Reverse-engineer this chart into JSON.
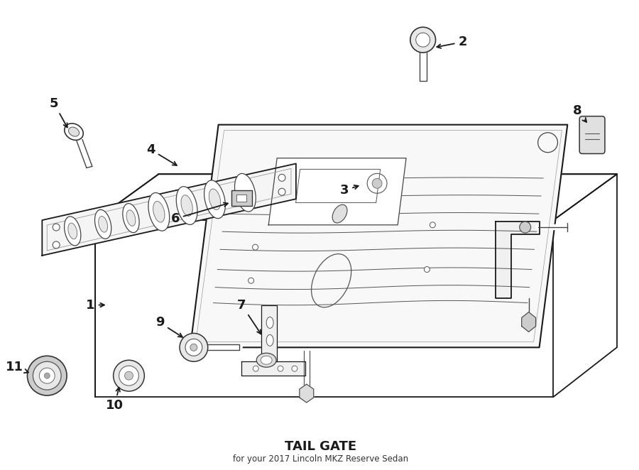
{
  "title": "TAIL GATE",
  "subtitle": "for your 2017 Lincoln MKZ Reserve Sedan",
  "bg": "#ffffff",
  "lc": "#1a1a1a",
  "fig_w": 9.0,
  "fig_h": 6.62,
  "dpi": 100
}
